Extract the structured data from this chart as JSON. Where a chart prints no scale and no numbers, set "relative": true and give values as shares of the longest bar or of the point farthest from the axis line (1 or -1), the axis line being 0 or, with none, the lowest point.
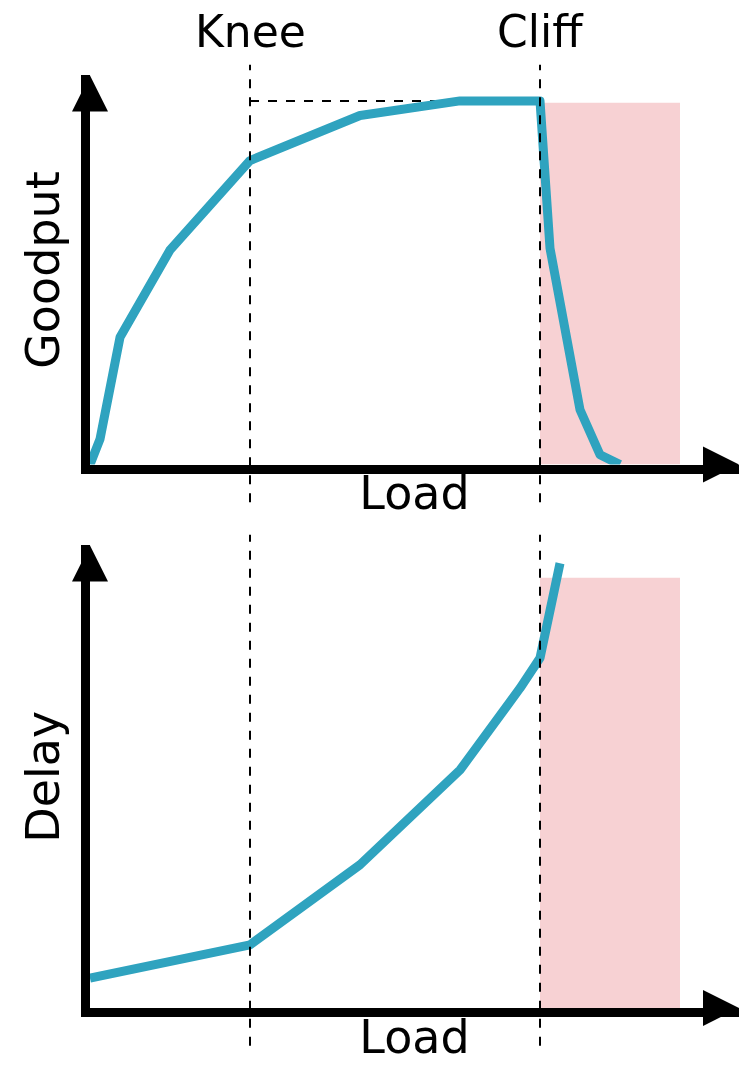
{
  "chart_data": [
    {
      "type": "line",
      "relative": true,
      "ylabel": "Goodput",
      "xlabel": "Load",
      "annotations": [
        "Knee",
        "Cliff"
      ],
      "grid": false,
      "tick_labels": false,
      "marker": "none",
      "line_style": "solid",
      "categories": [
        null,
        null,
        null,
        null,
        null,
        null,
        null,
        null,
        null,
        null,
        null,
        null,
        null,
        null,
        null,
        null,
        null,
        null,
        null,
        null,
        null,
        null,
        null,
        null,
        null,
        null,
        null,
        null,
        null,
        null,
        null,
        null,
        null,
        null,
        null,
        null,
        null,
        null,
        null,
        null,
        null,
        null,
        null,
        null,
        null,
        null,
        null,
        null,
        null,
        null,
        null,
        null,
        null,
        null,
        null,
        null,
        null,
        null,
        null,
        null
      ],
      "series": [
        {
          "color": "#2fa3bf",
          "values": [
            0,
            0.07,
            null,
            0.35,
            null,
            null,
            null,
            null,
            0.59,
            null,
            null,
            null,
            null,
            null,
            null,
            null,
            0.836,
            null,
            null,
            null,
            null,
            null,
            null,
            null,
            null,
            null,
            null,
            0.96,
            null,
            null,
            null,
            null,
            null,
            null,
            null,
            null,
            null,
            1,
            null,
            null,
            null,
            null,
            null,
            null,
            null,
            1,
            0.595,
            null,
            null,
            0.151,
            null,
            0.027,
            null,
            0,
            null,
            null,
            null,
            null,
            null,
            null
          ]
        }
      ],
      "ref_lines": [
        {
          "axis": "y",
          "value": 1,
          "line_style": "dashed",
          "color": "#000000"
        }
      ]
    },
    {
      "type": "line",
      "relative": true,
      "ylabel": "Delay",
      "xlabel": "Load",
      "grid": false,
      "tick_labels": false,
      "marker": "none",
      "line_style": "solid",
      "categories": [
        null,
        null,
        null,
        null,
        null,
        null,
        null,
        null,
        null,
        null,
        null,
        null,
        null,
        null,
        null,
        null,
        null,
        null,
        null,
        null,
        null,
        null,
        null,
        null,
        null,
        null,
        null,
        null,
        null,
        null,
        null,
        null,
        null,
        null,
        null,
        null,
        null,
        null,
        null,
        null,
        null,
        null,
        null,
        null,
        null,
        null,
        null,
        null,
        null,
        null,
        null,
        null,
        null,
        null,
        null,
        null,
        null,
        null,
        null,
        null
      ],
      "series": [
        {
          "color": "#2fa3bf",
          "values": [
            0.067,
            null,
            null,
            null,
            null,
            null,
            null,
            null,
            null,
            null,
            null,
            null,
            null,
            null,
            null,
            null,
            0.142,
            null,
            null,
            null,
            null,
            null,
            null,
            null,
            null,
            null,
            null,
            0.322,
            null,
            null,
            null,
            null,
            null,
            null,
            null,
            null,
            null,
            0.535,
            null,
            null,
            null,
            null,
            null,
            0.719,
            null,
            0.787,
            null,
            1,
            null,
            null,
            null,
            null,
            null,
            null,
            null,
            null,
            null,
            null,
            null,
            null
          ]
        }
      ]
    }
  ]
}
